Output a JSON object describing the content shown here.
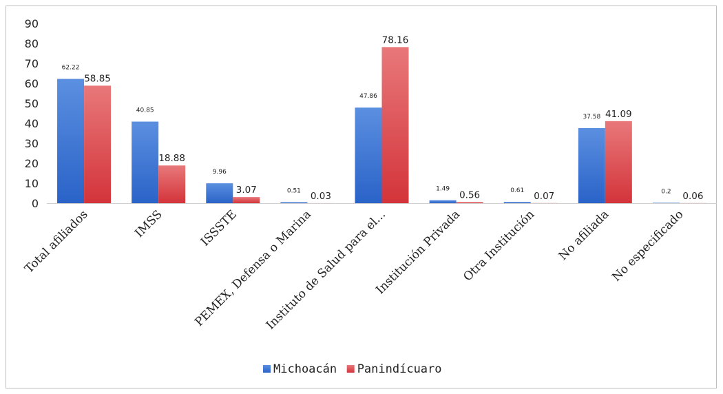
{
  "chart_data": {
    "type": "bar",
    "title": "",
    "xlabel": "",
    "ylabel": "",
    "ylim": [
      0,
      90
    ],
    "yticks": [
      0,
      10,
      20,
      30,
      40,
      50,
      60,
      70,
      80,
      90
    ],
    "grid": false,
    "legend_position": "bottom",
    "categories": [
      "Total afiliados",
      "IMSS",
      "ISSSTE",
      "PEMEX, Defensa o Marina",
      "Instituto de Salud para el...",
      "Institución Privada",
      "Otra Institución",
      "No afiliada",
      "No especificado"
    ],
    "series": [
      {
        "name": "Michoacán",
        "color": "#5b8fe0",
        "color_dark": "#2a63c8",
        "values": [
          62.22,
          40.85,
          9.96,
          0.51,
          47.86,
          1.49,
          0.61,
          37.58,
          0.2
        ],
        "labels": [
          "62.22",
          "40.85",
          "9.96",
          "0.51",
          "47.86",
          "1.49",
          "0.61",
          "37.58",
          "0.2"
        ]
      },
      {
        "name": "Panindícuaro",
        "color": "#e8787a",
        "color_dark": "#d3343a",
        "values": [
          58.85,
          18.88,
          3.07,
          0.03,
          78.16,
          0.56,
          0.07,
          41.09,
          0.06
        ],
        "labels": [
          "58.85",
          "18.88",
          "3.07",
          "0.03",
          "78.16",
          "0.56",
          "0.07",
          "41.09",
          "0.06"
        ]
      }
    ]
  }
}
